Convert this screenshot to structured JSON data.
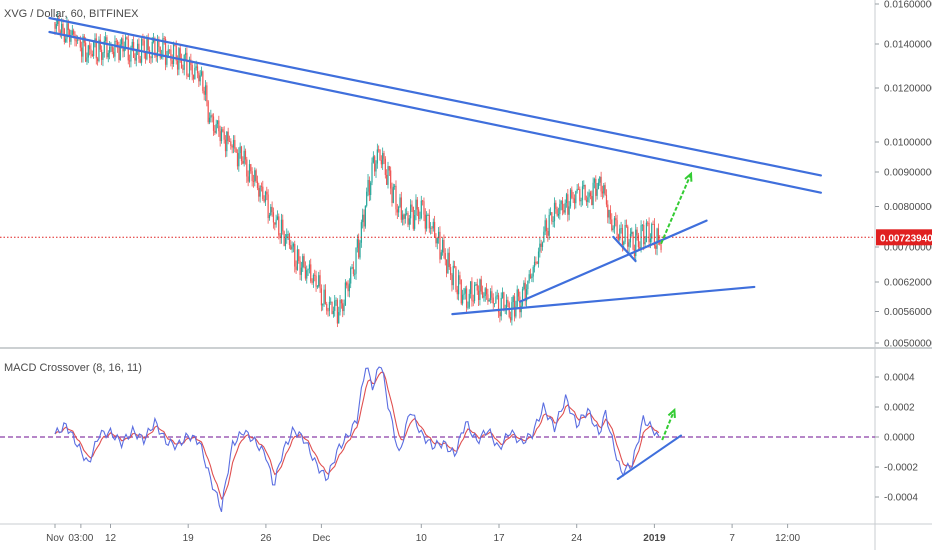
{
  "header": {
    "title": "XVG / Dollar, 60, BITFINEX",
    "indicator_title": "MACD Crossover (8, 16, 11)"
  },
  "colors": {
    "up": "#26a69a",
    "down": "#ef5350",
    "trendline": "#3f6fdc",
    "arrow": "#33cc33",
    "price_line": "#e02020",
    "price_badge": "#e02020",
    "macd_line": "#5b6ee1",
    "signal_line": "#e05050",
    "zero_line": "#8b3fa8",
    "axis_text": "#4a4a4a",
    "divider": "#9aa0a6"
  },
  "chart_data": [
    {
      "type": "line",
      "name": "price",
      "title": "XVG / Dollar, 60, BITFINEX",
      "current_price": "0.00723940",
      "ylim": [
        0.005,
        0.0165
      ],
      "price_ticks": [
        {
          "label": "0.01600000",
          "value": 0.016
        },
        {
          "label": "0.01400000",
          "value": 0.014
        },
        {
          "label": "0.01200000",
          "value": 0.012
        },
        {
          "label": "0.01000000",
          "value": 0.01
        },
        {
          "label": "0.00900000",
          "value": 0.009
        },
        {
          "label": "0.00800000",
          "value": 0.008
        },
        {
          "label": "0.00700000",
          "value": 0.007
        },
        {
          "label": "0.00620000",
          "value": 0.0062
        },
        {
          "label": "0.00560000",
          "value": 0.0056
        },
        {
          "label": "0.00500000",
          "value": 0.005
        }
      ],
      "x_ticks": [
        "Nov",
        "03:00",
        "12",
        "19",
        "26",
        "Dec",
        "10",
        "17",
        "24",
        "2019",
        "7",
        "12:00"
      ],
      "price_path": [
        {
          "t": 0,
          "p": 0.0151
        },
        {
          "t": 1.5,
          "p": 0.0148
        },
        {
          "t": 3,
          "p": 0.0139
        },
        {
          "t": 4.5,
          "p": 0.0141
        },
        {
          "t": 6,
          "p": 0.0142
        },
        {
          "t": 8,
          "p": 0.014
        },
        {
          "t": 9.5,
          "p": 0.0141
        },
        {
          "t": 10.5,
          "p": 0.0138
        },
        {
          "t": 12,
          "p": 0.0133
        },
        {
          "t": 13,
          "p": 0.013
        },
        {
          "t": 14,
          "p": 0.0111
        },
        {
          "t": 15,
          "p": 0.0105
        },
        {
          "t": 16.5,
          "p": 0.0098
        },
        {
          "t": 18,
          "p": 0.009
        },
        {
          "t": 19.5,
          "p": 0.0079
        },
        {
          "t": 21,
          "p": 0.0073
        },
        {
          "t": 22,
          "p": 0.0068
        },
        {
          "t": 23.5,
          "p": 0.0064
        },
        {
          "t": 24.5,
          "p": 0.0058
        },
        {
          "t": 25.5,
          "p": 0.0057
        },
        {
          "t": 26.5,
          "p": 0.0063
        },
        {
          "t": 27.5,
          "p": 0.0074
        },
        {
          "t": 28.5,
          "p": 0.0092
        },
        {
          "t": 29.3,
          "p": 0.0098
        },
        {
          "t": 30,
          "p": 0.009
        },
        {
          "t": 31,
          "p": 0.0081
        },
        {
          "t": 32,
          "p": 0.0079
        },
        {
          "t": 33,
          "p": 0.0082
        },
        {
          "t": 34,
          "p": 0.0076
        },
        {
          "t": 35,
          "p": 0.007
        },
        {
          "t": 36,
          "p": 0.0064
        },
        {
          "t": 37,
          "p": 0.006
        },
        {
          "t": 38,
          "p": 0.0062
        },
        {
          "t": 39,
          "p": 0.006
        },
        {
          "t": 40,
          "p": 0.0059
        },
        {
          "t": 41,
          "p": 0.0058
        },
        {
          "t": 42,
          "p": 0.006
        },
        {
          "t": 43,
          "p": 0.0066
        },
        {
          "t": 44,
          "p": 0.0074
        },
        {
          "t": 45,
          "p": 0.008
        },
        {
          "t": 46,
          "p": 0.0083
        },
        {
          "t": 47,
          "p": 0.0085
        },
        {
          "t": 48,
          "p": 0.0084
        },
        {
          "t": 49,
          "p": 0.0088
        },
        {
          "t": 49.5,
          "p": 0.0086
        },
        {
          "t": 50,
          "p": 0.0078
        },
        {
          "t": 51,
          "p": 0.0076
        },
        {
          "t": 52,
          "p": 0.0072
        },
        {
          "t": 53,
          "p": 0.0075
        },
        {
          "t": 54,
          "p": 0.0074
        },
        {
          "t": 54.6,
          "p": 0.00724
        }
      ],
      "trendlines": [
        {
          "name": "upper-resistance-1",
          "from": {
            "t": -0.5,
            "p": 0.0153
          },
          "to": {
            "t": 69,
            "p": 0.0089
          }
        },
        {
          "name": "upper-resistance-2",
          "from": {
            "t": -0.5,
            "p": 0.0146
          },
          "to": {
            "t": 69,
            "p": 0.0084
          }
        },
        {
          "name": "lower-support-1",
          "from": {
            "t": 35.8,
            "p": 0.00555
          },
          "to": {
            "t": 63,
            "p": 0.0061
          }
        },
        {
          "name": "lower-support-2",
          "from": {
            "t": 41.9,
            "p": 0.0058
          },
          "to": {
            "t": 58.7,
            "p": 0.00765
          }
        },
        {
          "name": "short-segment",
          "from": {
            "t": 50.3,
            "p": 0.00725
          },
          "to": {
            "t": 52.3,
            "p": 0.00668
          }
        }
      ],
      "arrows": [
        {
          "name": "price-breakout-arrow",
          "from": {
            "t": 54.6,
            "p": 0.00708
          },
          "to": {
            "t": 57.3,
            "p": 0.00895
          }
        }
      ]
    },
    {
      "type": "line",
      "name": "macd",
      "title": "MACD Crossover (8, 16, 11)",
      "ylim": [
        -0.00055,
        0.00055
      ],
      "y_ticks": [
        {
          "label": "0.0004",
          "value": 0.0004
        },
        {
          "label": "0.0002",
          "value": 0.0002
        },
        {
          "label": "0.0000",
          "value": 0.0
        },
        {
          "label": "-0.0002",
          "value": -0.0002
        },
        {
          "label": "-0.0004",
          "value": -0.0004
        }
      ],
      "zero_line": 0,
      "macd_path": [
        {
          "t": 0,
          "v": 2e-05
        },
        {
          "t": 1,
          "v": 8e-05
        },
        {
          "t": 2,
          "v": -5e-05
        },
        {
          "t": 3,
          "v": -0.00018
        },
        {
          "t": 4,
          "v": 2e-05
        },
        {
          "t": 5,
          "v": 3e-05
        },
        {
          "t": 6,
          "v": -4e-05
        },
        {
          "t": 7,
          "v": 4e-05
        },
        {
          "t": 8,
          "v": -2e-05
        },
        {
          "t": 9,
          "v": 0.0001
        },
        {
          "t": 10,
          "v": -3e-05
        },
        {
          "t": 11,
          "v": -6e-05
        },
        {
          "t": 12,
          "v": 1e-05
        },
        {
          "t": 13,
          "v": -3e-05
        },
        {
          "t": 14,
          "v": -0.00028
        },
        {
          "t": 15,
          "v": -0.00048
        },
        {
          "t": 15.5,
          "v": -0.00025
        },
        {
          "t": 16,
          "v": -5e-05
        },
        {
          "t": 17,
          "v": 4e-05
        },
        {
          "t": 18,
          "v": -3e-05
        },
        {
          "t": 19,
          "v": -0.00012
        },
        {
          "t": 19.7,
          "v": -0.00033
        },
        {
          "t": 20.5,
          "v": -0.0001
        },
        {
          "t": 21.5,
          "v": 5e-05
        },
        {
          "t": 22.5,
          "v": -2e-05
        },
        {
          "t": 23.5,
          "v": -0.00018
        },
        {
          "t": 24.5,
          "v": -0.00028
        },
        {
          "t": 25.5,
          "v": -8e-05
        },
        {
          "t": 26.5,
          "v": 2e-05
        },
        {
          "t": 27.2,
          "v": 0.00012
        },
        {
          "t": 28,
          "v": 0.00048
        },
        {
          "t": 28.7,
          "v": 0.00032
        },
        {
          "t": 29.3,
          "v": 0.00052
        },
        {
          "t": 30,
          "v": 0.00022
        },
        {
          "t": 31,
          "v": -0.00012
        },
        {
          "t": 32,
          "v": 0.00018
        },
        {
          "t": 33,
          "v": 2e-05
        },
        {
          "t": 34,
          "v": -6e-05
        },
        {
          "t": 35,
          "v": -4e-05
        },
        {
          "t": 36,
          "v": -0.00012
        },
        {
          "t": 37,
          "v": 0.0001
        },
        {
          "t": 38,
          "v": -3e-05
        },
        {
          "t": 39,
          "v": 5e-05
        },
        {
          "t": 40,
          "v": -8e-05
        },
        {
          "t": 41,
          "v": 4e-05
        },
        {
          "t": 42,
          "v": -4e-05
        },
        {
          "t": 43,
          "v": 2e-05
        },
        {
          "t": 44,
          "v": 0.0002
        },
        {
          "t": 45,
          "v": 6e-05
        },
        {
          "t": 46,
          "v": 0.00026
        },
        {
          "t": 47,
          "v": 8e-05
        },
        {
          "t": 48,
          "v": 0.00018
        },
        {
          "t": 49,
          "v": 2e-05
        },
        {
          "t": 49.6,
          "v": 0.00016
        },
        {
          "t": 50.2,
          "v": -2e-05
        },
        {
          "t": 51,
          "v": -0.00024
        },
        {
          "t": 52,
          "v": -0.00018
        },
        {
          "t": 53,
          "v": 0.00012
        },
        {
          "t": 54,
          "v": 4e-05
        },
        {
          "t": 54.6,
          "v": -4e-05
        }
      ],
      "trendlines": [
        {
          "name": "macd-support-line",
          "from": {
            "t": 50.7,
            "v": -0.00028
          },
          "to": {
            "t": 56.4,
            "v": 1e-05
          }
        }
      ],
      "arrows": [
        {
          "name": "macd-up-arrow",
          "from": {
            "t": 54.7,
            "v": -2e-05
          },
          "to": {
            "t": 55.8,
            "v": 0.00018
          }
        }
      ]
    }
  ]
}
